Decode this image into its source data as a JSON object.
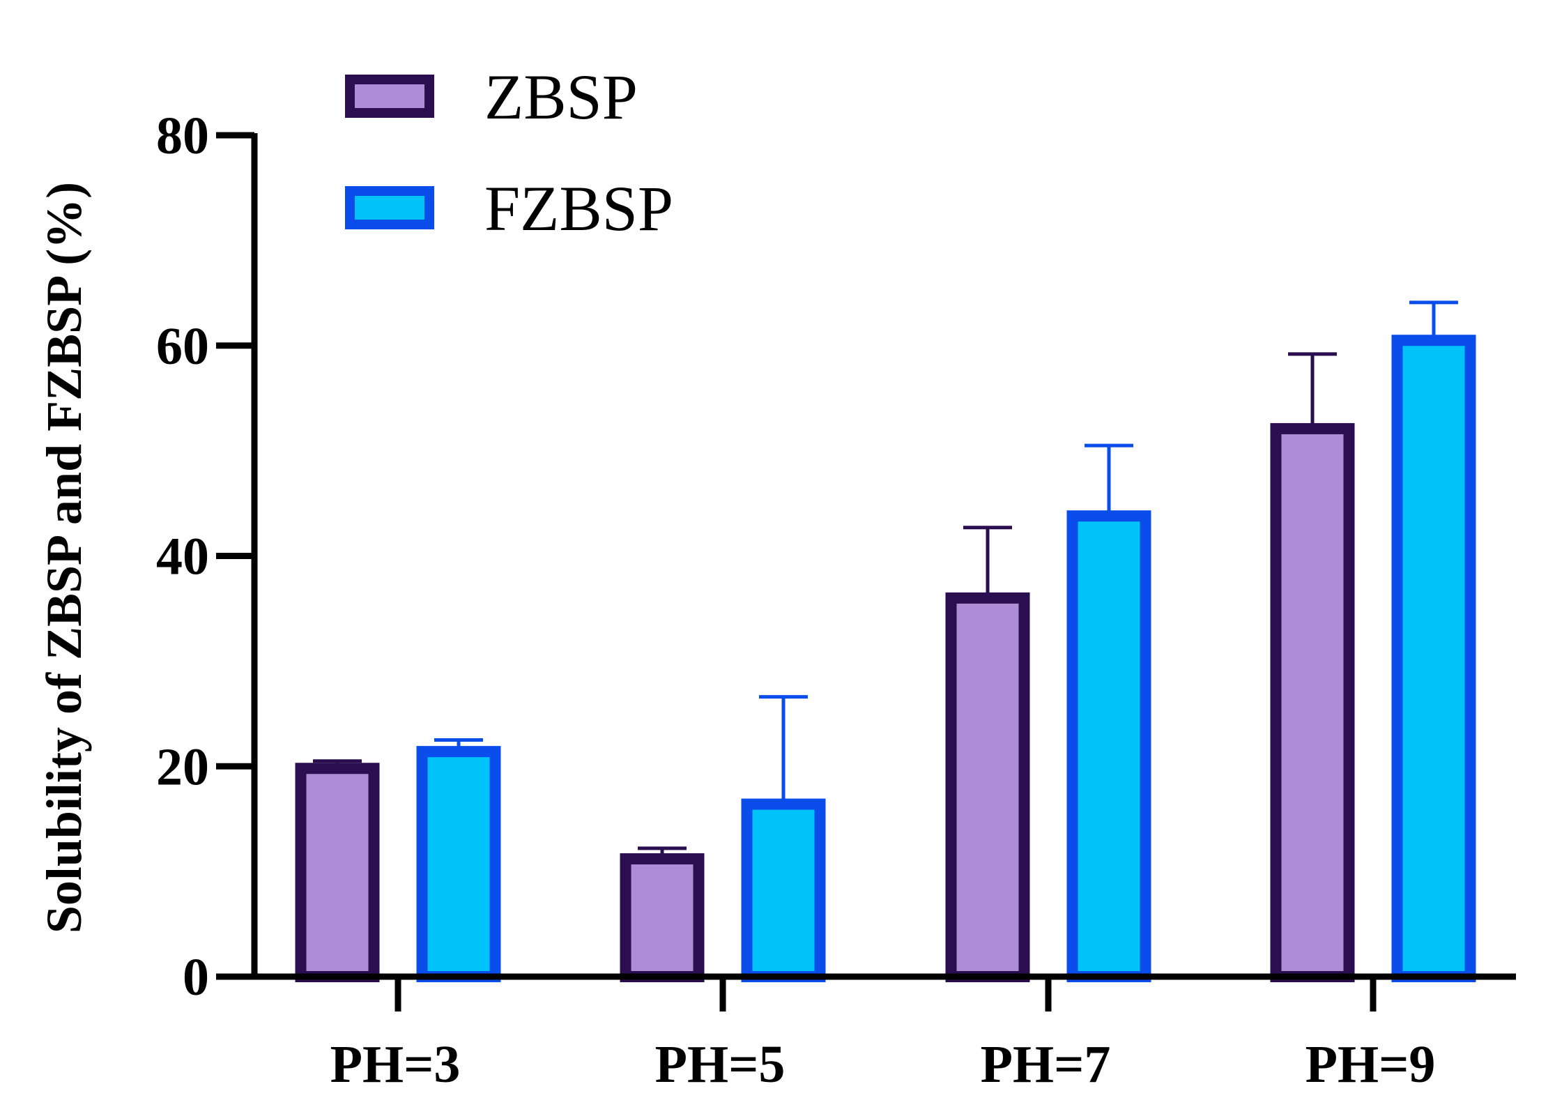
{
  "chart_data": {
    "type": "bar",
    "title": "",
    "xlabel": "",
    "ylabel": "Solubility of ZBSP and FZBSP (%)",
    "ylim": [
      0,
      80
    ],
    "yticks": [
      0,
      20,
      40,
      60,
      80
    ],
    "ytick_labels": [
      "0",
      "20",
      "40",
      "60",
      "80"
    ],
    "categories": [
      "PH=3",
      "PH=5",
      "PH=7",
      "PH=9"
    ],
    "grid": false,
    "legend_position": "top-left",
    "series": [
      {
        "name": "ZBSP",
        "values": [
          19.8,
          11.2,
          36.0,
          52.1
        ],
        "errors": [
          0.7,
          1.0,
          6.7,
          7.1
        ],
        "fill": "#AF8CD6",
        "stroke": "#2B0E4F"
      },
      {
        "name": "FZBSP",
        "values": [
          21.4,
          16.4,
          43.8,
          60.5
        ],
        "errors": [
          1.1,
          10.2,
          6.7,
          3.6
        ],
        "fill": "#00C3FA",
        "stroke": "#0A4DEB"
      }
    ]
  }
}
